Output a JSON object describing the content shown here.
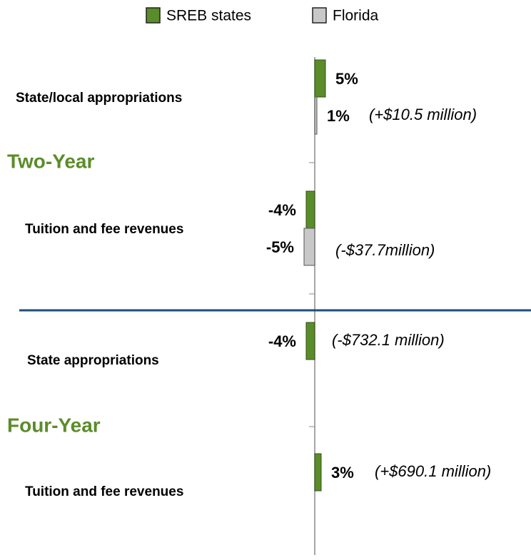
{
  "chart_data": {
    "type": "hbar",
    "categories": [
      "State/local appropriations",
      "Tuition and fee revenues",
      "State appropriations",
      "Tuition and fee revenues"
    ],
    "groups": [
      "Two-Year",
      "Four-Year"
    ],
    "series": [
      {
        "name": "SREB states",
        "color": "#5b8c2a",
        "values": [
          5,
          -4,
          -4,
          3
        ],
        "value_labels": [
          "5%",
          "-4%",
          "-4%",
          "3%"
        ]
      },
      {
        "name": "Florida",
        "color": "#c8c8c8",
        "values": [
          1,
          -5,
          null,
          null
        ],
        "value_labels": [
          "1%",
          "-5%",
          null,
          null
        ]
      }
    ],
    "annotations": [
      "(+$10.5 million)",
      "(-$37.7million)",
      "(-$732.1 million)",
      "(+$690.1 million)"
    ],
    "xlim": [
      -20,
      20
    ]
  }
}
